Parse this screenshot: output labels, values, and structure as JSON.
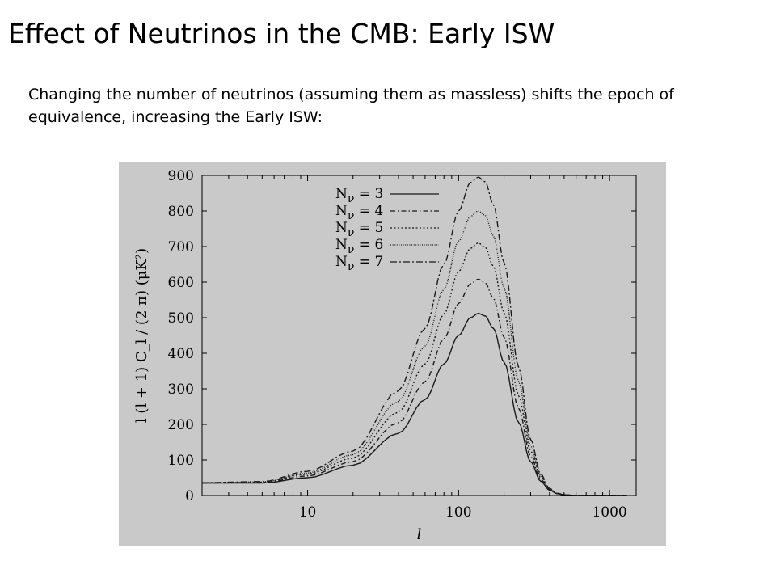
{
  "slide": {
    "title": "Effect of Neutrinos in the CMB: Early ISW",
    "subtitle": "Changing the number of neutrinos (assuming them as massless) shifts the epoch of equivalence, increasing the Early ISW:"
  },
  "colors": {
    "panel_background": "#c9c9c9",
    "curve": "#1a1a1a",
    "axis": "#000000"
  },
  "chart_data": {
    "type": "line",
    "xscale": "log",
    "xlim": [
      2,
      1500
    ],
    "ylim": [
      0,
      900
    ],
    "xlabel": "l",
    "ylabel": "l (l + 1) C_l / (2 π) (μK²)",
    "xtick_values": [
      10,
      100,
      1000
    ],
    "xtick_labels": [
      "10",
      "100",
      "1000"
    ],
    "ytick_values": [
      0,
      100,
      200,
      300,
      400,
      500,
      600,
      700,
      800,
      900
    ],
    "ytick_labels": [
      "0",
      "100",
      "200",
      "300",
      "400",
      "500",
      "600",
      "700",
      "800",
      "900"
    ],
    "legend_placement": "top-center",
    "series": [
      {
        "name": "N_ν = 3",
        "label_main": "N",
        "label_sub": "ν",
        "label_value": " = 3",
        "dash": "solid",
        "x": [
          2,
          5,
          10,
          20,
          40,
          60,
          80,
          100,
          120,
          135,
          150,
          170,
          200,
          250,
          300,
          350,
          400,
          450,
          500,
          600,
          800,
          1000,
          1300
        ],
        "y": [
          35,
          35,
          50,
          85,
          175,
          270,
          370,
          450,
          500,
          512,
          505,
          470,
          375,
          205,
          95,
          40,
          15,
          5,
          2,
          0,
          0,
          0,
          0
        ]
      },
      {
        "name": "N_ν = 4",
        "label_main": "N",
        "label_sub": "ν",
        "label_value": " = 4",
        "dash": "dash-dot",
        "x": [
          2,
          5,
          10,
          20,
          40,
          60,
          80,
          100,
          120,
          135,
          150,
          170,
          200,
          250,
          300,
          350,
          400,
          450,
          500,
          600,
          800,
          1000,
          1300
        ],
        "y": [
          35,
          36,
          55,
          95,
          205,
          320,
          440,
          540,
          595,
          608,
          598,
          555,
          445,
          245,
          110,
          45,
          16,
          5,
          2,
          0,
          0,
          0,
          0
        ]
      },
      {
        "name": "N_ν = 5",
        "label_main": "N",
        "label_sub": "ν",
        "label_value": " = 5",
        "dash": "dotted",
        "x": [
          2,
          5,
          10,
          20,
          40,
          60,
          80,
          100,
          120,
          135,
          150,
          170,
          200,
          250,
          300,
          350,
          400,
          450,
          500,
          600,
          800,
          1000,
          1300
        ],
        "y": [
          35,
          37,
          60,
          105,
          235,
          370,
          510,
          630,
          695,
          710,
          698,
          645,
          515,
          280,
          125,
          50,
          17,
          6,
          2,
          0,
          0,
          0,
          0
        ]
      },
      {
        "name": "N_ν = 6",
        "label_main": "N",
        "label_sub": "ν",
        "label_value": " = 6",
        "dash": "fine-dotted",
        "x": [
          2,
          5,
          10,
          20,
          40,
          60,
          80,
          100,
          120,
          135,
          150,
          170,
          200,
          250,
          300,
          350,
          400,
          450,
          500,
          600,
          800,
          1000,
          1300
        ],
        "y": [
          36,
          38,
          63,
          115,
          265,
          420,
          580,
          715,
          785,
          800,
          788,
          730,
          585,
          320,
          140,
          55,
          18,
          6,
          2,
          0,
          0,
          0,
          0
        ]
      },
      {
        "name": "N_ν = 7",
        "label_main": "N",
        "label_sub": "ν",
        "label_value": " = 7",
        "dash": "dash-dot-long",
        "x": [
          2,
          5,
          10,
          20,
          40,
          60,
          80,
          100,
          120,
          135,
          150,
          170,
          200,
          250,
          300,
          350,
          400,
          450,
          500,
          600,
          800,
          1000,
          1300
        ],
        "y": [
          36,
          39,
          68,
          125,
          295,
          470,
          650,
          800,
          880,
          895,
          882,
          818,
          655,
          360,
          158,
          60,
          20,
          6,
          2,
          0,
          0,
          0,
          0
        ]
      }
    ]
  }
}
